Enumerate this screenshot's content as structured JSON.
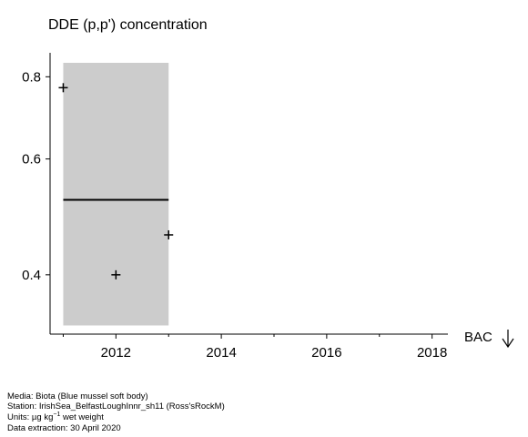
{
  "chart_data": {
    "type": "scatter",
    "title": "DDE (p,p') concentration",
    "xlabel": "",
    "ylabel": "",
    "x_ticks": [
      2012,
      2014,
      2016,
      2018
    ],
    "y_ticks": [
      0.4,
      0.6,
      0.8
    ],
    "y_scale": "log",
    "xlim": [
      2010.75,
      2018.3
    ],
    "ylim": [
      0.325,
      0.87
    ],
    "points": [
      {
        "x": 2011,
        "y": 0.77
      },
      {
        "x": 2012,
        "y": 0.4
      },
      {
        "x": 2013,
        "y": 0.46
      }
    ],
    "mean_band": {
      "x_start": 2011,
      "x_end": 2013,
      "lower": 0.335,
      "upper": 0.84,
      "mean": 0.52
    },
    "band_color": "#cccccc",
    "reference": {
      "label": "BAC",
      "direction": "below"
    },
    "grid": false
  },
  "footer": {
    "media": "Media: Biota (Blue mussel soft body)",
    "station": "Station: IrishSea_BelfastLoughInnr_sh11 (Ross'sRockM)",
    "units_prefix": "Units:  µg kg",
    "units_sup": "−1",
    "units_suffix": " wet weight",
    "extraction": "Data extraction: 30 April 2020"
  }
}
